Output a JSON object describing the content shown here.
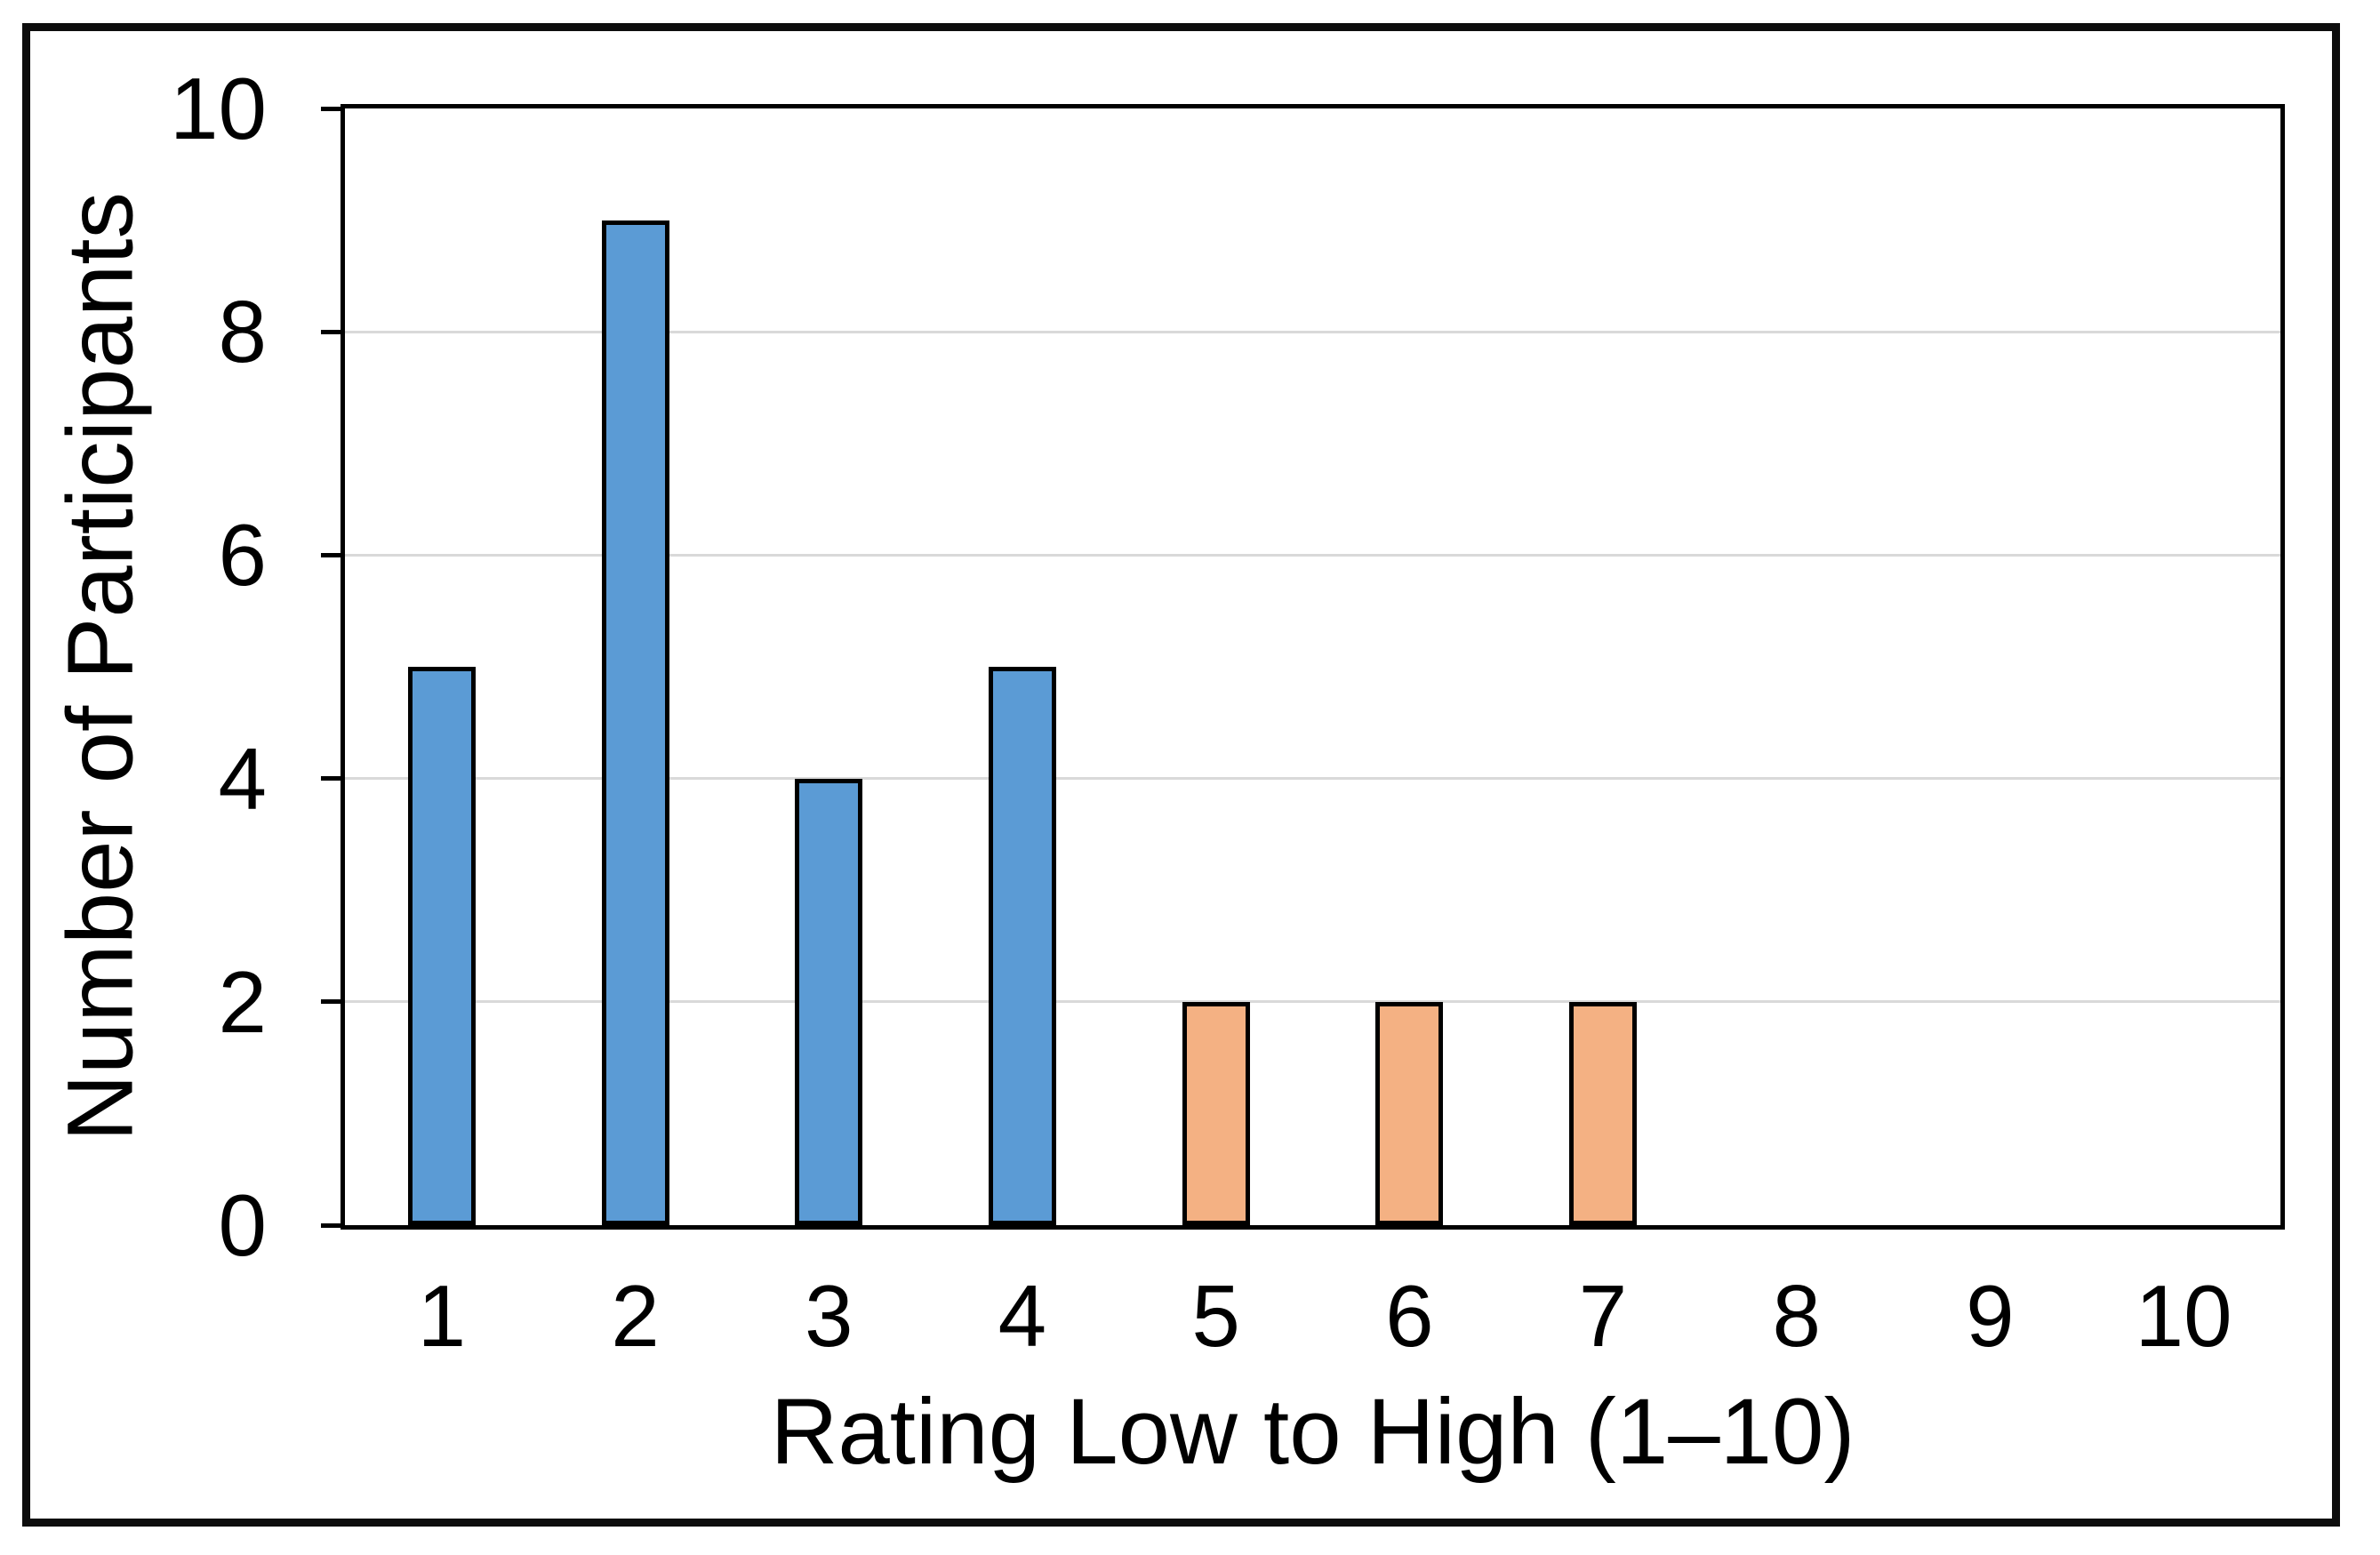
{
  "chart_data": {
    "type": "bar",
    "title": "",
    "categories": [
      "1",
      "2",
      "3",
      "4",
      "5",
      "6",
      "7",
      "8",
      "9",
      "10"
    ],
    "values": [
      5,
      9,
      4,
      5,
      2,
      2,
      2,
      0,
      0,
      0
    ],
    "bar_groups": [
      "blue",
      "blue",
      "blue",
      "blue",
      "orange",
      "orange",
      "orange",
      "none",
      "none",
      "none"
    ],
    "xlabel": "Rating Low to High (1–10)",
    "ylabel": "Number of Participants",
    "ylim": [
      0,
      10
    ],
    "yticks": [
      "0",
      "2",
      "4",
      "6",
      "8",
      "10"
    ],
    "grid": "horizontal-major",
    "legend": "none",
    "colors": {
      "blue_fill": "#5B9BD5",
      "orange_fill": "#F4B183",
      "bar_outline": "#000000",
      "gridline": "#D9D9D9",
      "axis": "#000000",
      "frame": "#0d0d0d",
      "background": "#FFFFFF"
    }
  }
}
